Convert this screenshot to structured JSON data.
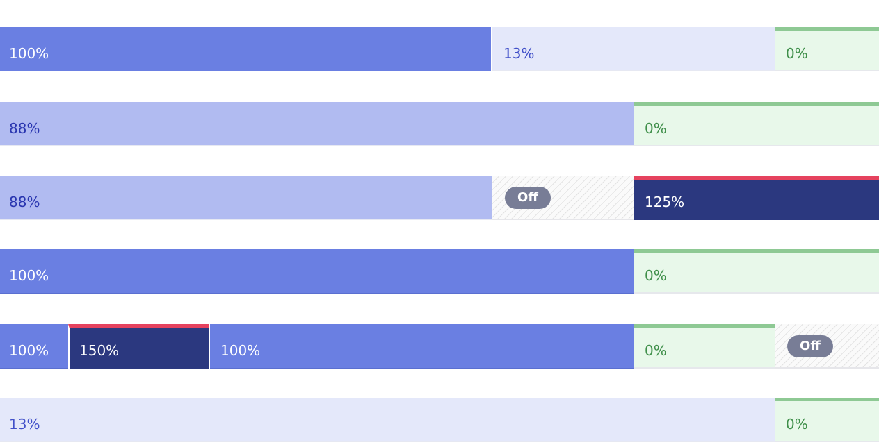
{
  "rows": [
    {
      "segments": [
        {
          "label": "100%",
          "kind": "full",
          "value_percent": 100
        },
        {
          "label": "13%",
          "kind": "low",
          "value_percent": 13
        },
        {
          "label": "0%",
          "kind": "zero",
          "value_percent": 0
        }
      ]
    },
    {
      "segments": [
        {
          "label": "88%",
          "kind": "mid",
          "value_percent": 88
        },
        {
          "label": "0%",
          "kind": "zero",
          "value_percent": 0
        }
      ]
    },
    {
      "segments": [
        {
          "label": "88%",
          "kind": "mid",
          "value_percent": 88
        },
        {
          "label": "Off",
          "kind": "off"
        },
        {
          "label": "125%",
          "kind": "over",
          "value_percent": 125
        }
      ]
    },
    {
      "segments": [
        {
          "label": "100%",
          "kind": "full",
          "value_percent": 100
        },
        {
          "label": "0%",
          "kind": "zero",
          "value_percent": 0
        }
      ]
    },
    {
      "segments": [
        {
          "label": "100%",
          "kind": "full",
          "value_percent": 100
        },
        {
          "label": "150%",
          "kind": "over",
          "value_percent": 150
        },
        {
          "label": "100%",
          "kind": "full",
          "value_percent": 100
        },
        {
          "label": "0%",
          "kind": "zero",
          "value_percent": 0
        },
        {
          "label": "Off",
          "kind": "off"
        }
      ]
    },
    {
      "segments": [
        {
          "label": "13%",
          "kind": "low",
          "value_percent": 13
        },
        {
          "label": "0%",
          "kind": "zero",
          "value_percent": 0
        }
      ]
    }
  ],
  "colors": {
    "full": "#6a7fe2",
    "mid": "#b1bbf1",
    "low": "#e4e8fa",
    "over": "#2b387f",
    "over_accent": "#e5425e",
    "zero": "#e8f8ea",
    "zero_accent": "#8ec994",
    "off_pill": "#787d96"
  }
}
